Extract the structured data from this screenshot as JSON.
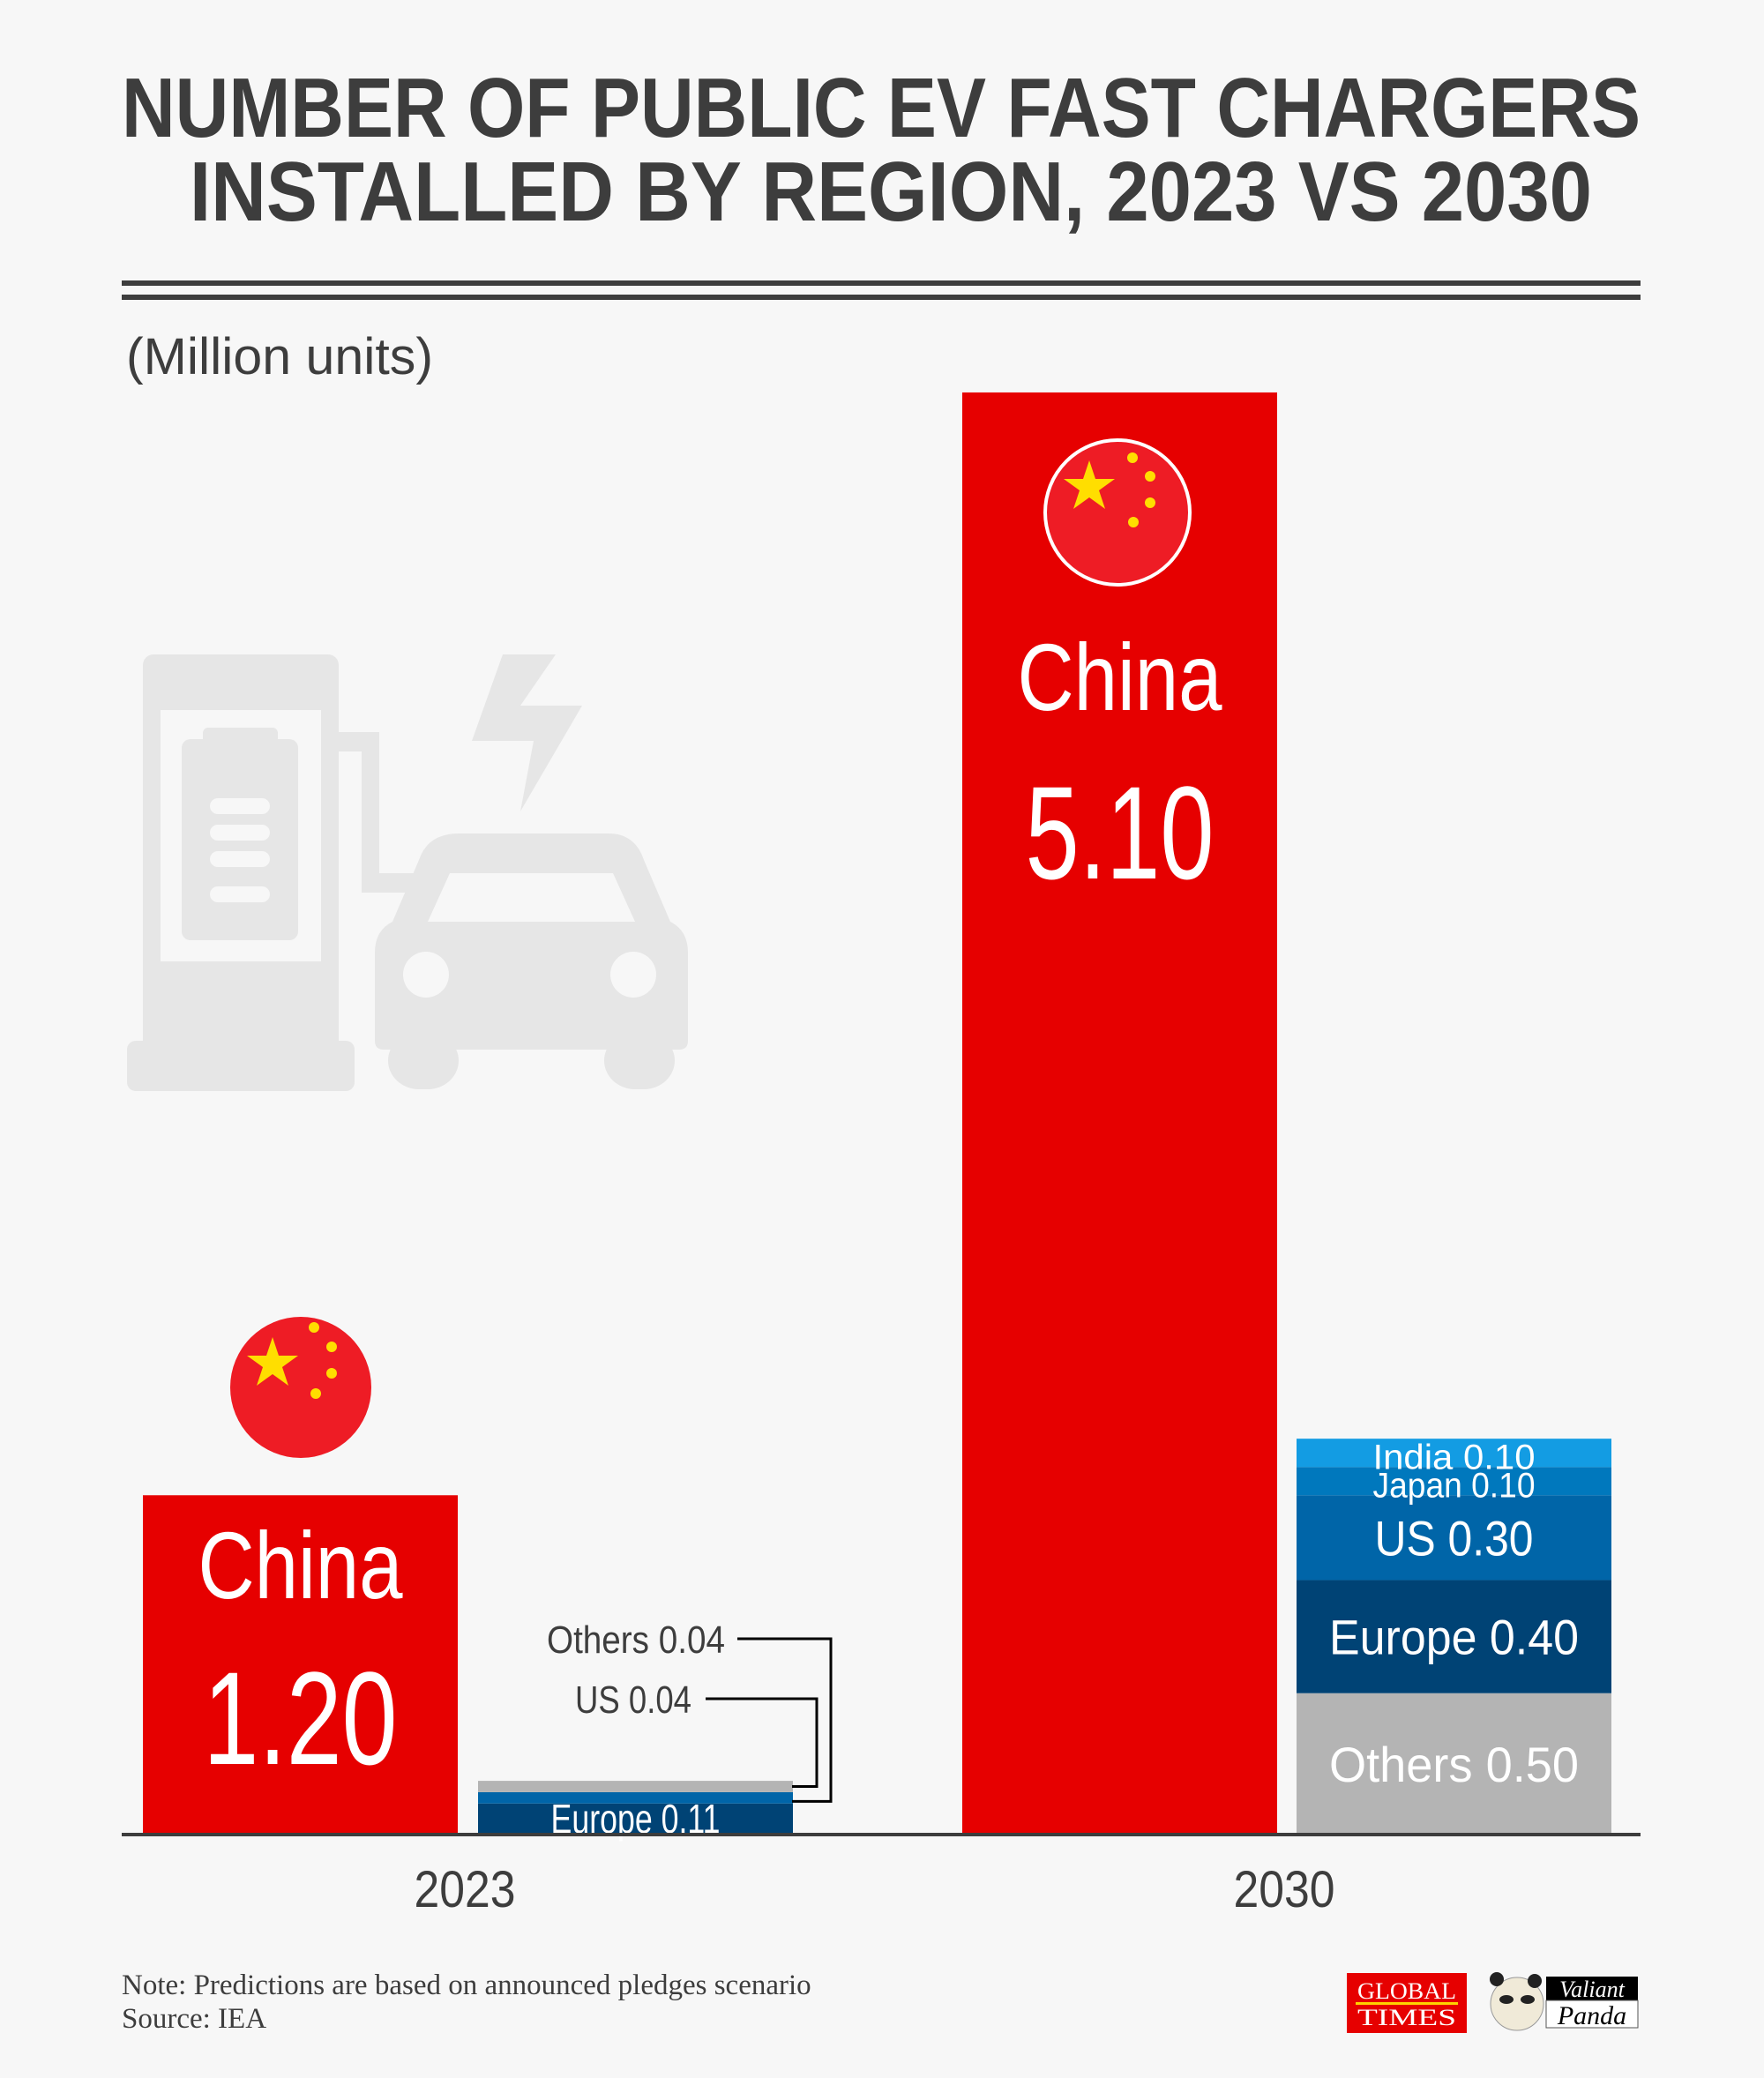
{
  "title_line1": "NUMBER OF PUBLIC EV FAST CHARGERS",
  "title_line2": "INSTALLED BY REGION, 2023 VS 2030",
  "unit_label": "(Million units)",
  "note": "Note: Predictions are based on announced pledges scenario",
  "source": "Source: IEA",
  "logos": {
    "global_times": "GLOBAL TIMES",
    "valiant": "Valiant",
    "panda": "Panda"
  },
  "chart_data": {
    "type": "bar",
    "title": "NUMBER OF PUBLIC EV FAST CHARGERS INSTALLED BY REGION, 2023 VS 2030",
    "ylabel": "(Million units)",
    "categories": [
      "2023",
      "2030"
    ],
    "grid": false,
    "groups": [
      {
        "year": "2023",
        "china": {
          "name": "China",
          "value": 1.2,
          "value_label": "1.20",
          "color": "#e60000"
        },
        "stack": [
          {
            "name": "Europe",
            "value": 0.11,
            "label": "Europe 0.11",
            "color": "#004375"
          },
          {
            "name": "US",
            "value": 0.04,
            "label": "US 0.04",
            "color": "#0065a8"
          },
          {
            "name": "Others",
            "value": 0.04,
            "label": "Others 0.04",
            "color": "#b4b4b4"
          }
        ]
      },
      {
        "year": "2030",
        "china": {
          "name": "China",
          "value": 5.1,
          "value_label": "5.10",
          "color": "#e60000"
        },
        "stack": [
          {
            "name": "Others",
            "value": 0.5,
            "label": "Others 0.50",
            "color": "#b4b4b4"
          },
          {
            "name": "Europe",
            "value": 0.4,
            "label": "Europe 0.40",
            "color": "#004375"
          },
          {
            "name": "US",
            "value": 0.3,
            "label": "US 0.30",
            "color": "#0065a8"
          },
          {
            "name": "Japan",
            "value": 0.1,
            "label": "Japan 0.10",
            "color": "#0078bd"
          },
          {
            "name": "India",
            "value": 0.1,
            "label": "India 0.10",
            "color": "#139ce3"
          }
        ]
      }
    ]
  }
}
